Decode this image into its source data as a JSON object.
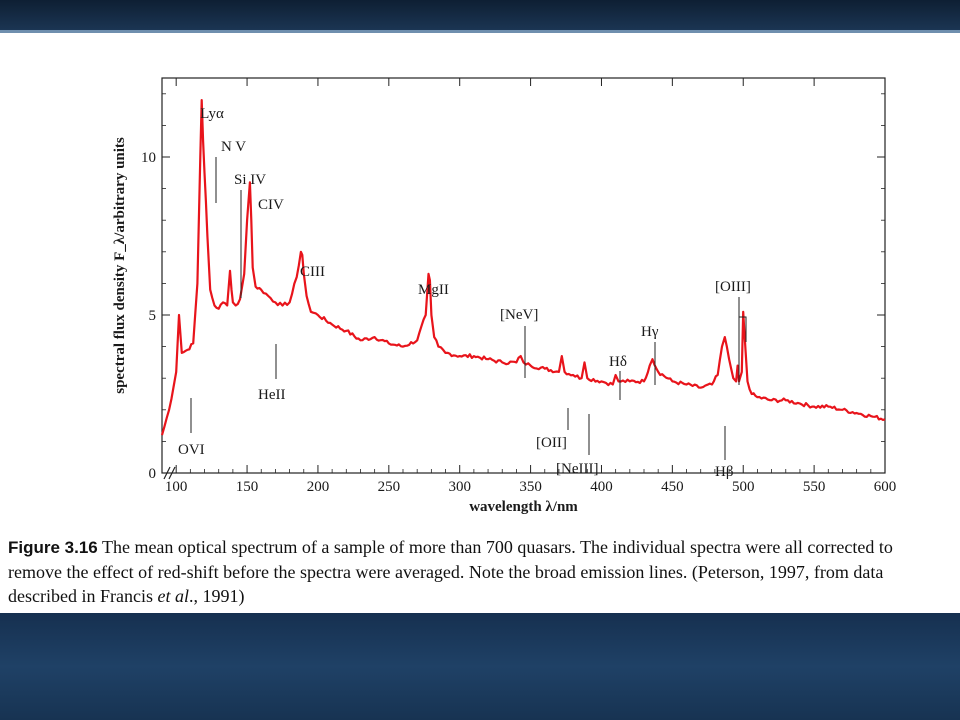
{
  "caption": {
    "figure_number": "Figure 3.16",
    "text": "The mean optical spectrum of a sample of more than 700 quasars. The individual spectra were all corrected to remove the effect of red-shift before the spectra were averaged. Note the broad emission lines. (Peterson, 1997, from data described in Francis ",
    "et_al": "et al",
    "text_end": "., 1991)"
  },
  "chart_data": {
    "type": "line",
    "title": "",
    "xlabel": "wavelength λ/nm",
    "ylabel": "spectral flux density F_λ/arbitrary units",
    "xlim": [
      90,
      600
    ],
    "ylim": [
      0,
      12.5
    ],
    "x_ticks": [
      100,
      150,
      200,
      250,
      300,
      350,
      400,
      450,
      500,
      550,
      600
    ],
    "y_ticks": [
      0,
      5,
      10
    ],
    "grid": false,
    "axis_break": true,
    "line_color": "#e8141b",
    "series": [
      {
        "x": [
          90,
          95,
          100,
          102,
          104,
          108,
          112,
          115,
          117,
          118,
          119,
          120,
          121,
          122,
          124,
          127,
          130,
          133,
          136,
          138,
          139,
          140,
          142,
          145,
          148,
          150,
          152,
          153,
          154,
          156,
          160,
          165,
          170,
          175,
          180,
          185,
          188,
          189,
          190,
          192,
          195,
          200,
          210,
          220,
          230,
          240,
          250,
          260,
          270,
          276,
          278,
          279,
          280,
          282,
          285,
          290,
          300,
          310,
          320,
          330,
          340,
          343,
          345,
          350,
          360,
          370,
          372,
          374,
          380,
          386,
          388,
          390,
          400,
          408,
          410,
          412,
          420,
          430,
          434,
          436,
          440,
          450,
          460,
          470,
          478,
          482,
          485,
          487,
          490,
          493,
          495,
          496,
          497,
          499,
          500,
          501,
          503,
          506,
          510,
          520,
          530,
          540,
          550,
          560,
          570,
          580,
          590,
          600
        ],
        "y": [
          1.2,
          2.0,
          3.2,
          5.0,
          3.8,
          3.9,
          4.1,
          6.0,
          10.0,
          11.8,
          10.5,
          9.5,
          8.6,
          7.5,
          5.8,
          5.3,
          5.2,
          5.4,
          5.3,
          6.4,
          5.8,
          5.4,
          5.3,
          5.5,
          6.3,
          8.0,
          9.2,
          8.0,
          6.5,
          5.9,
          5.8,
          5.6,
          5.4,
          5.3,
          5.4,
          6.2,
          7.0,
          6.9,
          6.3,
          5.6,
          5.1,
          5.0,
          4.7,
          4.5,
          4.2,
          4.3,
          4.1,
          4.0,
          4.2,
          5.0,
          6.3,
          6.1,
          5.0,
          4.3,
          4.0,
          3.8,
          3.7,
          3.7,
          3.6,
          3.5,
          3.5,
          3.7,
          3.5,
          3.4,
          3.3,
          3.2,
          3.7,
          3.2,
          3.1,
          3.0,
          3.5,
          3.0,
          2.9,
          2.8,
          3.1,
          2.9,
          2.9,
          2.9,
          3.4,
          3.6,
          3.2,
          2.9,
          2.8,
          2.7,
          2.8,
          3.1,
          4.0,
          4.3,
          3.6,
          3.0,
          2.9,
          3.4,
          2.9,
          3.2,
          5.1,
          4.3,
          2.9,
          2.5,
          2.4,
          2.3,
          2.3,
          2.2,
          2.1,
          2.1,
          2.0,
          1.9,
          1.8,
          1.7
        ]
      }
    ],
    "annotations": [
      {
        "label": "Lyα",
        "x": 118,
        "y": 11.8
      },
      {
        "label": "N V",
        "x": 121,
        "y": 10.0
      },
      {
        "label": "Si IV",
        "x": 139,
        "y": 6.4
      },
      {
        "label": "CIV",
        "x": 152,
        "y": 9.2
      },
      {
        "label": "CIII",
        "x": 189,
        "y": 7.0
      },
      {
        "label": "MgII",
        "x": 279,
        "y": 6.3
      },
      {
        "label": "[NeV]",
        "x": 343,
        "y": 3.7
      },
      {
        "label": "Hδ",
        "x": 410,
        "y": 3.2
      },
      {
        "label": "Hγ",
        "x": 434,
        "y": 3.6
      },
      {
        "label": "[OIII]",
        "x": 497,
        "y": 5.1
      },
      {
        "label": "OVI",
        "x": 103,
        "y": 3.5
      },
      {
        "label": "HeII",
        "x": 164,
        "y": 5.2
      },
      {
        "label": "[OII]",
        "x": 373,
        "y": 3.2
      },
      {
        "label": "[NeIII]",
        "x": 387,
        "y": 3.0
      },
      {
        "label": "Hβ",
        "x": 486,
        "y": 2.5
      }
    ]
  }
}
